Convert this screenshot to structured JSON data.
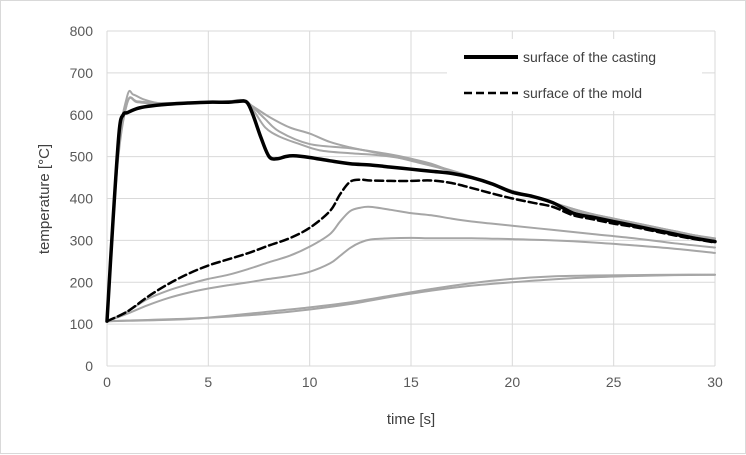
{
  "chart_data": {
    "type": "line",
    "title": "",
    "xlabel": "time [s]",
    "ylabel": "temperature [°C]",
    "xlim": [
      0,
      30
    ],
    "ylim": [
      0,
      800
    ],
    "xticks": [
      0,
      5,
      10,
      15,
      20,
      25,
      30
    ],
    "yticks": [
      0,
      100,
      200,
      300,
      400,
      500,
      600,
      700,
      800
    ],
    "grid": true,
    "legend_position": "top-right",
    "colors": {
      "highlight": "#000000",
      "other": "#a6a6a6",
      "grid": "#d9d9d9"
    },
    "series": [
      {
        "name": "surface of the casting",
        "style": "solid-bold",
        "x": [
          0,
          0.3,
          0.6,
          0.8,
          1.0,
          1.5,
          2,
          3,
          4,
          5,
          6,
          6.5,
          6.9,
          7.2,
          7.6,
          8.0,
          8.4,
          8.8,
          9.2,
          10,
          11,
          12,
          13,
          14,
          15,
          16,
          17,
          18,
          19,
          20,
          21,
          22,
          23,
          24,
          25,
          26,
          27,
          28,
          29,
          30
        ],
        "y": [
          107,
          350,
          560,
          600,
          605,
          615,
          620,
          625,
          628,
          630,
          630,
          632,
          630,
          600,
          545,
          500,
          495,
          500,
          502,
          498,
          490,
          483,
          480,
          475,
          470,
          465,
          460,
          450,
          435,
          415,
          405,
          390,
          365,
          355,
          345,
          335,
          325,
          315,
          305,
          297
        ]
      },
      {
        "name": "surface of the mold",
        "style": "dashed",
        "x": [
          0,
          1,
          2,
          3,
          4,
          5,
          6,
          7,
          8,
          9,
          10,
          11,
          11.5,
          12,
          12.5,
          13,
          14,
          15,
          16,
          17,
          18,
          19,
          20,
          21,
          22,
          23,
          24,
          25,
          26,
          27,
          28,
          29,
          30
        ],
        "y": [
          107,
          130,
          165,
          195,
          220,
          240,
          255,
          270,
          288,
          305,
          330,
          370,
          410,
          440,
          445,
          443,
          442,
          442,
          443,
          437,
          425,
          412,
          400,
          390,
          380,
          360,
          350,
          340,
          332,
          322,
          312,
          303,
          295
        ]
      },
      {
        "x": [
          0,
          0.5,
          1.0,
          1.3,
          1.8,
          2.5,
          3,
          5,
          6,
          6.7,
          7.2,
          7.8,
          8.5,
          10,
          12,
          14,
          15,
          16,
          17,
          18,
          19,
          20,
          21,
          22,
          23,
          24,
          25,
          26,
          27,
          28,
          29,
          30
        ],
        "y": [
          107,
          500,
          645,
          648,
          637,
          628,
          628,
          630,
          632,
          635,
          618,
          590,
          560,
          530,
          520,
          505,
          495,
          483,
          465,
          450,
          433,
          418,
          405,
          390,
          372,
          360,
          350,
          340,
          330,
          320,
          312,
          305
        ]
      },
      {
        "x": [
          0,
          0.5,
          1.0,
          1.5,
          2.5,
          5,
          6.7,
          7.2,
          8,
          9,
          10,
          11,
          12,
          13,
          14,
          15,
          16,
          17,
          18,
          19,
          20,
          21,
          22,
          23,
          24,
          25,
          26,
          27,
          28,
          29,
          30
        ],
        "y": [
          107,
          480,
          630,
          632,
          628,
          630,
          632,
          620,
          595,
          570,
          555,
          535,
          522,
          512,
          502,
          490,
          478,
          465,
          450,
          433,
          418,
          405,
          390,
          375,
          362,
          352,
          342,
          332,
          322,
          312,
          303
        ]
      },
      {
        "x": [
          0,
          0.5,
          1.0,
          1.5,
          2.5,
          5,
          6.7,
          7.2,
          7.8,
          8.5,
          9.5,
          10.5,
          12,
          13,
          14,
          15,
          16,
          17,
          18,
          19,
          20,
          21,
          22,
          23,
          24,
          25,
          26,
          27,
          28,
          29,
          30
        ],
        "y": [
          107,
          470,
          628,
          630,
          626,
          630,
          632,
          612,
          570,
          548,
          530,
          515,
          508,
          505,
          500,
          492,
          480,
          467,
          452,
          435,
          418,
          403,
          390,
          375,
          362,
          352,
          342,
          332,
          322,
          312,
          303
        ]
      },
      {
        "x": [
          0,
          1,
          2,
          3,
          4,
          5,
          6,
          7,
          8,
          9,
          10,
          11,
          11.5,
          12,
          12.5,
          13,
          14,
          15,
          16,
          17,
          18,
          19,
          20,
          22,
          24,
          26,
          28,
          30
        ],
        "y": [
          107,
          130,
          160,
          180,
          195,
          208,
          218,
          232,
          248,
          263,
          285,
          315,
          345,
          370,
          378,
          380,
          373,
          365,
          360,
          352,
          345,
          340,
          335,
          325,
          315,
          305,
          293,
          283
        ]
      },
      {
        "x": [
          0,
          1,
          2,
          3,
          4,
          5,
          6,
          7,
          8,
          9,
          10,
          11,
          11.5,
          12,
          12.5,
          13,
          14,
          15,
          16,
          17,
          18,
          19,
          20,
          22,
          24,
          26,
          28,
          30
        ],
        "y": [
          107,
          125,
          145,
          162,
          175,
          185,
          193,
          200,
          208,
          215,
          225,
          245,
          263,
          282,
          295,
          302,
          305,
          306,
          305,
          305,
          305,
          304,
          303,
          300,
          295,
          288,
          280,
          270
        ]
      },
      {
        "x": [
          0,
          2,
          4,
          6,
          8,
          10,
          12,
          14,
          16,
          18,
          20,
          22,
          24,
          26,
          28,
          30
        ],
        "y": [
          107,
          110,
          113,
          118,
          125,
          135,
          148,
          165,
          180,
          192,
          200,
          207,
          212,
          215,
          217,
          218
        ]
      },
      {
        "x": [
          0,
          2,
          4,
          6,
          8,
          10,
          12,
          14,
          16,
          18,
          20,
          22,
          24,
          26,
          28,
          30
        ],
        "y": [
          107,
          109,
          112,
          120,
          130,
          140,
          152,
          168,
          184,
          198,
          208,
          214,
          216,
          217,
          218,
          218
        ]
      }
    ]
  }
}
